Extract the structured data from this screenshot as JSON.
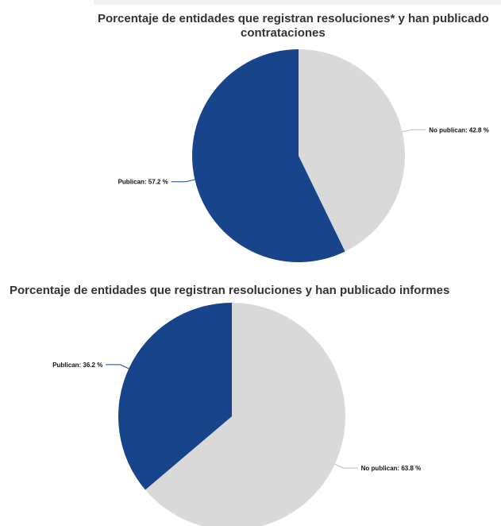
{
  "chart_data": [
    {
      "type": "pie",
      "title": "Porcentaje de entidades que registran resoluciones* y han publicado contrataciones",
      "title_lines": [
        "Porcentaje de entidades que registran resoluciones* y han publicado",
        "contrataciones"
      ],
      "slices": [
        {
          "label": "No publican",
          "value": 42.8,
          "text": "No publican: 42.8 %",
          "color": "#d9d9d9"
        },
        {
          "label": "Publican",
          "value": 57.2,
          "text": "Publican: 57.2 %",
          "color": "#17448a"
        }
      ]
    },
    {
      "type": "pie",
      "title": "Porcentaje de entidades que registran resoluciones y han publicado informes",
      "title_lines": [
        "Porcentaje de entidades que registran resoluciones y han publicado informes"
      ],
      "slices": [
        {
          "label": "No publican",
          "value": 63.8,
          "text": "No publican: 63.8 %",
          "color": "#d9d9d9"
        },
        {
          "label": "Publican",
          "value": 36.2,
          "text": "Publican: 36.2 %",
          "color": "#17448a"
        }
      ]
    }
  ]
}
